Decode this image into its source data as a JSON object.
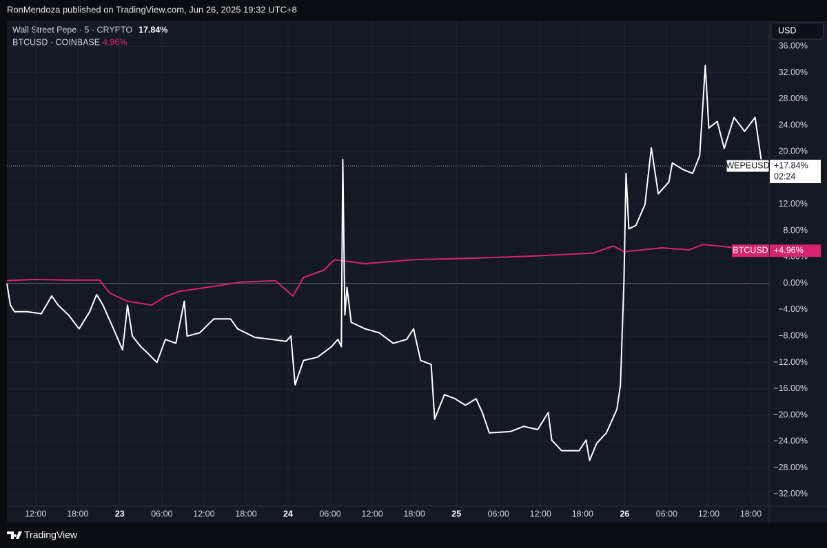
{
  "header": {
    "published": "RonMendoza published on TradingView.com, Jun 26, 2025 19:32 UTC+8"
  },
  "footer": {
    "brand": "TradingView"
  },
  "chart_data": {
    "type": "line",
    "currency": "USD",
    "xlim": [
      7.9,
      116.6
    ],
    "xticks": [
      {
        "value": 12,
        "label": "12:00"
      },
      {
        "value": 18,
        "label": "18:00"
      },
      {
        "value": 24,
        "label": "23"
      },
      {
        "value": 30,
        "label": "06:00"
      },
      {
        "value": 36,
        "label": "12:00"
      },
      {
        "value": 42,
        "label": "18:00"
      },
      {
        "value": 48,
        "label": "24"
      },
      {
        "value": 54,
        "label": "06:00"
      },
      {
        "value": 60,
        "label": "12:00"
      },
      {
        "value": 66,
        "label": "18:00"
      },
      {
        "value": 72,
        "label": "25"
      },
      {
        "value": 78,
        "label": "06:00"
      },
      {
        "value": 84,
        "label": "12:00"
      },
      {
        "value": 90,
        "label": "18:00"
      },
      {
        "value": 96,
        "label": "26"
      },
      {
        "value": 102,
        "label": "06:00"
      },
      {
        "value": 108,
        "label": "12:00"
      },
      {
        "value": 114,
        "label": "18:00"
      }
    ],
    "ylim": [
      -33.8,
      39.9
    ],
    "yticks": [
      {
        "value": -32,
        "label": "−32.00%"
      },
      {
        "value": -28,
        "label": "−28.00%"
      },
      {
        "value": -24,
        "label": "−24.00%"
      },
      {
        "value": -20,
        "label": "−20.00%"
      },
      {
        "value": -16,
        "label": "−16.00%"
      },
      {
        "value": -12,
        "label": "−12.00%"
      },
      {
        "value": -8,
        "label": "−8.00%"
      },
      {
        "value": -4,
        "label": "−4.00%"
      },
      {
        "value": 0,
        "label": "0.00%"
      },
      {
        "value": 4,
        "label": "4.00%"
      },
      {
        "value": 8,
        "label": "8.00%"
      },
      {
        "value": 12,
        "label": "12.00%"
      },
      {
        "value": 16,
        "label": "16.00%"
      },
      {
        "value": 20,
        "label": "20.00%"
      },
      {
        "value": 24,
        "label": "24.00%"
      },
      {
        "value": 28,
        "label": "28.00%"
      },
      {
        "value": 32,
        "label": "32.00%"
      },
      {
        "value": 36,
        "label": "36.00%"
      }
    ],
    "grid": true,
    "series": [
      {
        "name": "Wall Street Pepe · 5 · CRYPTO",
        "legend_value": "17.84%",
        "color": "#ffffff",
        "tag": "WEPEUSD",
        "last_label": "+17.84%",
        "countdown": "02:24",
        "x": [
          7.9,
          8.4,
          9.0,
          10.8,
          12.8,
          14.3,
          15.2,
          16.7,
          18.2,
          19.7,
          20.7,
          21.6,
          23.1,
          24.4,
          25.1,
          25.8,
          27.0,
          28.0,
          29.3,
          30.5,
          32.0,
          33.2,
          33.6,
          35.4,
          37.4,
          39.8,
          40.8,
          43.3,
          45.7,
          47.7,
          48.4,
          49.0,
          50.2,
          52.2,
          54.2,
          55.1,
          55.6,
          55.8,
          56.1,
          56.4,
          57.0,
          59.0,
          61.0,
          63.0,
          64.9,
          65.9,
          66.9,
          68.4,
          68.9,
          70.3,
          71.8,
          73.3,
          74.8,
          75.7,
          76.7,
          79.7,
          81.6,
          83.6,
          85.1,
          85.6,
          87.0,
          89.5,
          90.5,
          91.0,
          92.0,
          93.4,
          94.9,
          95.4,
          95.9,
          96.2,
          96.6,
          97.6,
          98.9,
          99.8,
          100.8,
          102.3,
          102.8,
          104.3,
          105.7,
          106.7,
          107.5,
          108.0,
          109.2,
          110.2,
          111.6,
          113.1,
          114.6,
          115.6
        ],
        "values": [
          0,
          -3.3,
          -4.3,
          -4.3,
          -4.6,
          -1.9,
          -3.3,
          -4.8,
          -6.9,
          -4.3,
          -1.7,
          -3.3,
          -6.9,
          -10.1,
          -3.3,
          -8,
          -9.6,
          -10.6,
          -12,
          -8.5,
          -9.1,
          -2.7,
          -8,
          -7.5,
          -5.4,
          -5.4,
          -6.9,
          -8.2,
          -8.5,
          -8.8,
          -8,
          -15.4,
          -11.7,
          -11.2,
          -9.6,
          -8.5,
          -9.6,
          18.8,
          -4.8,
          -0.6,
          -5.9,
          -6.9,
          -7.5,
          -9.1,
          -8.5,
          -6.9,
          -11.7,
          -12.3,
          -20.6,
          -16.9,
          -17.5,
          -18.5,
          -17.5,
          -19.6,
          -22.7,
          -22.5,
          -21.7,
          -22.2,
          -19.6,
          -23.8,
          -25.4,
          -25.4,
          -23.8,
          -26.9,
          -24.3,
          -22.7,
          -19.1,
          -15.4,
          0.4,
          16.7,
          8.3,
          8.8,
          12,
          20.6,
          13.6,
          15.4,
          18.3,
          17.3,
          16.7,
          19.4,
          33.1,
          23.6,
          24.6,
          20.5,
          25.2,
          23.1,
          25.2,
          17.84
        ]
      },
      {
        "name": "BTCUSD · COINBASE",
        "legend_value": "4.96%",
        "color": "#d6246e",
        "tag": "BTCUSD",
        "last_label": "+4.96%",
        "x": [
          7.9,
          11.8,
          16.7,
          21.1,
          22.6,
          25.1,
          28.5,
          30.5,
          32.5,
          36.4,
          41.3,
          46.2,
          48.7,
          50.2,
          53.1,
          54.6,
          59.0,
          65.9,
          73.8,
          81.6,
          87.5,
          91.5,
          94.4,
          95.9,
          101.3,
          105.2,
          107.2,
          111.1,
          115.6
        ],
        "values": [
          0.4,
          0.6,
          0.5,
          0.5,
          -1.5,
          -2.7,
          -3.3,
          -2.0,
          -1.2,
          -0.6,
          0.2,
          0.4,
          -1.9,
          0.9,
          2.0,
          3.6,
          3.0,
          3.6,
          3.8,
          4.1,
          4.4,
          4.6,
          5.7,
          4.8,
          5.4,
          5.1,
          5.9,
          5.5,
          4.96
        ]
      }
    ]
  }
}
